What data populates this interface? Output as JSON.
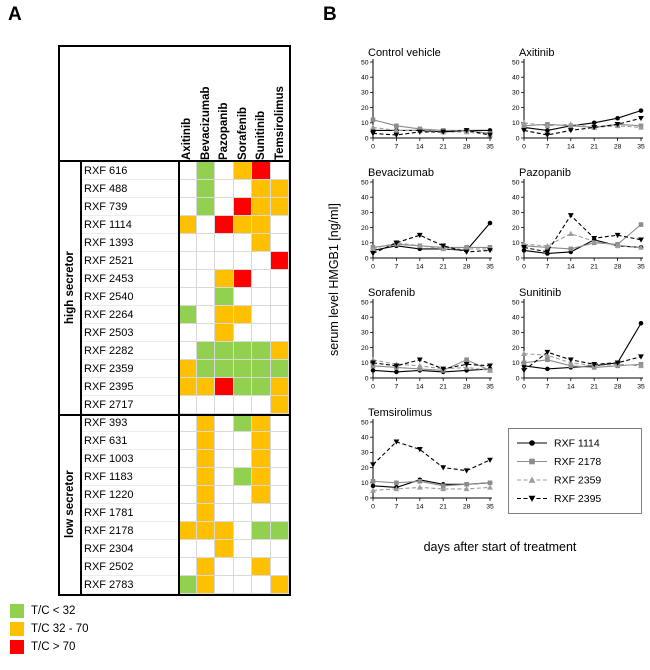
{
  "panelA": {
    "label": "A"
  },
  "panelB": {
    "label": "B",
    "ylabel": "serum level HMGB1 [ng/ml]",
    "xlabel": "days after start of treatment",
    "ylim": [
      0,
      50
    ],
    "yticks": [
      0,
      10,
      20,
      30,
      40,
      50
    ],
    "xticks": [
      0,
      7,
      14,
      21,
      28,
      35
    ],
    "series_styles": [
      {
        "name": "RXF 1114",
        "color": "#000000",
        "line": "solid",
        "marker": "circle"
      },
      {
        "name": "RXF 2178",
        "color": "#8c8c8c",
        "line": "solid",
        "marker": "square"
      },
      {
        "name": "RXF 2359",
        "color": "#9c9c9c",
        "line": "dashed",
        "marker": "triangle-up"
      },
      {
        "name": "RXF 2395",
        "color": "#000000",
        "line": "dashed",
        "marker": "triangle-down"
      }
    ]
  },
  "chart_data": [
    {
      "type": "heatmap",
      "title": "T/C response categories by xenograft and drug",
      "columns": [
        "Axitinib",
        "Bevacizumab",
        "Pazopanib",
        "Sorafenib",
        "Sunitinib",
        "Temsirolimus"
      ],
      "palette": {
        "green": "#92d050",
        "orange": "#ffc000",
        "red": "#ff0000",
        "white": "#ffffff"
      },
      "legend": [
        {
          "label": "T/C < 32",
          "color": "#92d050"
        },
        {
          "label": "T/C 32 - 70",
          "color": "#ffc000"
        },
        {
          "label": "T/C > 70",
          "color": "#ff0000"
        }
      ],
      "groups": [
        {
          "label": "high secretor",
          "rows": [
            {
              "name": "RXF 616",
              "cells": [
                "white",
                "green",
                "white",
                "orange",
                "red",
                "white"
              ]
            },
            {
              "name": "RXF 488",
              "cells": [
                "white",
                "green",
                "white",
                "white",
                "orange",
                "orange"
              ]
            },
            {
              "name": "RXF 739",
              "cells": [
                "white",
                "green",
                "white",
                "red",
                "orange",
                "orange"
              ]
            },
            {
              "name": "RXF 1114",
              "cells": [
                "orange",
                "white",
                "red",
                "orange",
                "orange",
                "white"
              ]
            },
            {
              "name": "RXF 1393",
              "cells": [
                "white",
                "white",
                "white",
                "white",
                "orange",
                "white"
              ]
            },
            {
              "name": "RXF 2521",
              "cells": [
                "white",
                "white",
                "white",
                "white",
                "white",
                "red"
              ]
            },
            {
              "name": "RXF 2453",
              "cells": [
                "white",
                "white",
                "orange",
                "red",
                "white",
                "white"
              ]
            },
            {
              "name": "RXF 2540",
              "cells": [
                "white",
                "white",
                "green",
                "white",
                "white",
                "white"
              ]
            },
            {
              "name": "RXF 2264",
              "cells": [
                "green",
                "white",
                "orange",
                "orange",
                "white",
                "white"
              ]
            },
            {
              "name": "RXF 2503",
              "cells": [
                "white",
                "white",
                "orange",
                "white",
                "white",
                "white"
              ]
            },
            {
              "name": "RXF 2282",
              "cells": [
                "white",
                "green",
                "green",
                "green",
                "green",
                "orange"
              ]
            },
            {
              "name": "RXF 2359",
              "cells": [
                "orange",
                "green",
                "green",
                "green",
                "green",
                "green"
              ]
            },
            {
              "name": "RXF 2395",
              "cells": [
                "orange",
                "orange",
                "red",
                "green",
                "green",
                "orange"
              ]
            },
            {
              "name": "RXF 2717",
              "cells": [
                "white",
                "white",
                "white",
                "white",
                "white",
                "orange"
              ]
            }
          ]
        },
        {
          "label": "low secretor",
          "rows": [
            {
              "name": "RXF 393",
              "cells": [
                "white",
                "orange",
                "white",
                "green",
                "orange",
                "white"
              ]
            },
            {
              "name": "RXF 631",
              "cells": [
                "white",
                "orange",
                "white",
                "white",
                "orange",
                "white"
              ]
            },
            {
              "name": "RXF 1003",
              "cells": [
                "white",
                "orange",
                "white",
                "white",
                "orange",
                "white"
              ]
            },
            {
              "name": "RXF 1183",
              "cells": [
                "white",
                "orange",
                "white",
                "green",
                "orange",
                "white"
              ]
            },
            {
              "name": "RXF 1220",
              "cells": [
                "white",
                "orange",
                "white",
                "white",
                "orange",
                "white"
              ]
            },
            {
              "name": "RXF 1781",
              "cells": [
                "white",
                "orange",
                "white",
                "white",
                "white",
                "white"
              ]
            },
            {
              "name": "RXF 2178",
              "cells": [
                "orange",
                "orange",
                "orange",
                "white",
                "green",
                "green"
              ]
            },
            {
              "name": "RXF 2304",
              "cells": [
                "white",
                "white",
                "orange",
                "white",
                "white",
                "white"
              ]
            },
            {
              "name": "RXF 2502",
              "cells": [
                "white",
                "orange",
                "white",
                "white",
                "orange",
                "white"
              ]
            },
            {
              "name": "RXF 2783",
              "cells": [
                "green",
                "orange",
                "white",
                "white",
                "white",
                "orange"
              ]
            }
          ]
        }
      ]
    },
    {
      "type": "line",
      "title": "Control vehicle",
      "x": [
        0,
        7,
        14,
        21,
        28,
        35
      ],
      "ylim": [
        0,
        50
      ],
      "series": [
        {
          "name": "RXF 1114",
          "values": [
            5,
            5,
            5,
            4,
            5,
            5
          ]
        },
        {
          "name": "RXF 2178",
          "values": [
            12,
            8,
            6,
            5,
            5,
            3
          ]
        },
        {
          "name": "RXF 2359",
          "values": [
            7,
            5,
            5,
            4,
            4,
            2
          ]
        },
        {
          "name": "RXF 2395",
          "values": [
            3,
            2,
            4,
            4,
            5,
            2
          ]
        }
      ]
    },
    {
      "type": "line",
      "title": "Axitinib",
      "x": [
        0,
        7,
        14,
        21,
        28,
        35
      ],
      "ylim": [
        0,
        50
      ],
      "series": [
        {
          "name": "RXF 1114",
          "values": [
            7,
            5,
            8,
            10,
            13,
            18
          ]
        },
        {
          "name": "RXF 2178",
          "values": [
            8,
            9,
            8,
            7,
            9,
            8
          ]
        },
        {
          "name": "RXF 2359",
          "values": [
            10,
            8,
            9,
            7,
            8,
            7
          ]
        },
        {
          "name": "RXF 2395",
          "values": [
            5,
            2,
            5,
            7,
            9,
            13
          ]
        }
      ]
    },
    {
      "type": "line",
      "title": "Bevacizumab",
      "x": [
        0,
        7,
        14,
        21,
        28,
        35
      ],
      "ylim": [
        0,
        50
      ],
      "series": [
        {
          "name": "RXF 1114",
          "values": [
            5,
            8,
            6,
            6,
            5,
            23
          ]
        },
        {
          "name": "RXF 2178",
          "values": [
            7,
            9,
            8,
            7,
            7,
            7
          ]
        },
        {
          "name": "RXF 2359",
          "values": [
            6,
            10,
            8,
            6,
            6,
            6
          ]
        },
        {
          "name": "RXF 2395",
          "values": [
            3,
            10,
            15,
            8,
            4,
            5
          ]
        }
      ]
    },
    {
      "type": "line",
      "title": "Pazopanib",
      "x": [
        0,
        7,
        14,
        21,
        28,
        35
      ],
      "ylim": [
        0,
        50
      ],
      "series": [
        {
          "name": "RXF 1114",
          "values": [
            5,
            3,
            4,
            12,
            8,
            7
          ]
        },
        {
          "name": "RXF 2178",
          "values": [
            8,
            7,
            6,
            10,
            9,
            22
          ]
        },
        {
          "name": "RXF 2359",
          "values": [
            9,
            8,
            16,
            11,
            8,
            7
          ]
        },
        {
          "name": "RXF 2395",
          "values": [
            7,
            4,
            28,
            13,
            15,
            12
          ]
        }
      ]
    },
    {
      "type": "line",
      "title": "Sorafenib",
      "x": [
        0,
        7,
        14,
        21,
        28,
        35
      ],
      "ylim": [
        0,
        50
      ],
      "series": [
        {
          "name": "RXF 1114",
          "values": [
            5,
            4,
            5,
            4,
            5,
            6
          ]
        },
        {
          "name": "RXF 2178",
          "values": [
            8,
            7,
            6,
            5,
            12,
            5
          ]
        },
        {
          "name": "RXF 2359",
          "values": [
            12,
            9,
            8,
            6,
            7,
            5
          ]
        },
        {
          "name": "RXF 2395",
          "values": [
            10,
            8,
            12,
            6,
            9,
            8
          ]
        }
      ]
    },
    {
      "type": "line",
      "title": "Sunitinib",
      "x": [
        0,
        7,
        14,
        21,
        28,
        35
      ],
      "ylim": [
        0,
        50
      ],
      "series": [
        {
          "name": "RXF 1114",
          "values": [
            8,
            6,
            7,
            8,
            10,
            36
          ]
        },
        {
          "name": "RXF 2178",
          "values": [
            10,
            12,
            8,
            7,
            8,
            9
          ]
        },
        {
          "name": "RXF 2359",
          "values": [
            16,
            15,
            10,
            8,
            9,
            8
          ]
        },
        {
          "name": "RXF 2395",
          "values": [
            5,
            17,
            12,
            9,
            10,
            14
          ]
        }
      ]
    },
    {
      "type": "line",
      "title": "Temsirolimus",
      "x": [
        0,
        7,
        14,
        21,
        28,
        35
      ],
      "ylim": [
        0,
        50
      ],
      "series": [
        {
          "name": "RXF 1114",
          "values": [
            8,
            7,
            12,
            9,
            9,
            10
          ]
        },
        {
          "name": "RXF 2178",
          "values": [
            11,
            10,
            11,
            8,
            9,
            10
          ]
        },
        {
          "name": "RXF 2359",
          "values": [
            5,
            6,
            7,
            6,
            6,
            7
          ]
        },
        {
          "name": "RXF 2395",
          "values": [
            22,
            37,
            32,
            20,
            18,
            25
          ]
        }
      ]
    }
  ]
}
